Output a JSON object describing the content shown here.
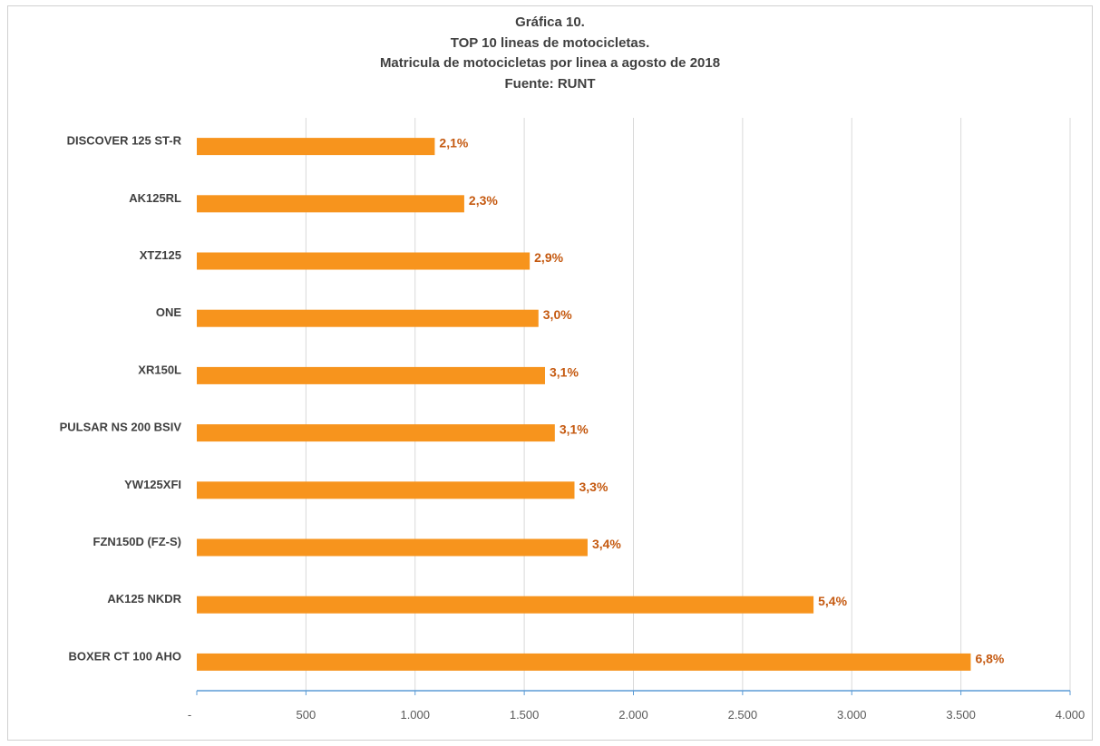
{
  "chart_data": {
    "type": "bar",
    "orientation": "horizontal",
    "title": [
      "Gráfica 10.",
      "TOP 10 lineas de motocicletas.",
      "Matricula de motocicletas por linea a agosto de 2018",
      "Fuente: RUNT"
    ],
    "categories": [
      "DISCOVER 125 ST-R",
      "AK125RL",
      "XTZ125",
      "ONE",
      "XR150L",
      "PULSAR NS 200 BSIV",
      "YW125XFI",
      "FZN150D (FZ-S)",
      "AK125 NKDR",
      "BOXER CT 100 AHO"
    ],
    "values": [
      1090,
      1225,
      1525,
      1565,
      1595,
      1640,
      1730,
      1790,
      2825,
      3545
    ],
    "data_labels": [
      "2,1%",
      "2,3%",
      "2,9%",
      "3,0%",
      "3,1%",
      "3,1%",
      "3,3%",
      "3,4%",
      "5,4%",
      "6,8%"
    ],
    "xlim": [
      0,
      4000
    ],
    "x_ticks": [
      0,
      500,
      1000,
      1500,
      2000,
      2500,
      3000,
      3500,
      4000
    ],
    "x_tick_labels": [
      "-",
      "500",
      "1.000",
      "1.500",
      "2.000",
      "2.500",
      "3.000",
      "3.500",
      "4.000"
    ],
    "xlabel": "",
    "ylabel": "",
    "grid": true,
    "legend": "none",
    "colors": {
      "bar": "#f7941d",
      "data_label": "#c55a11",
      "grid": "#d9d9d9",
      "axis": "#5b9bd5"
    }
  }
}
